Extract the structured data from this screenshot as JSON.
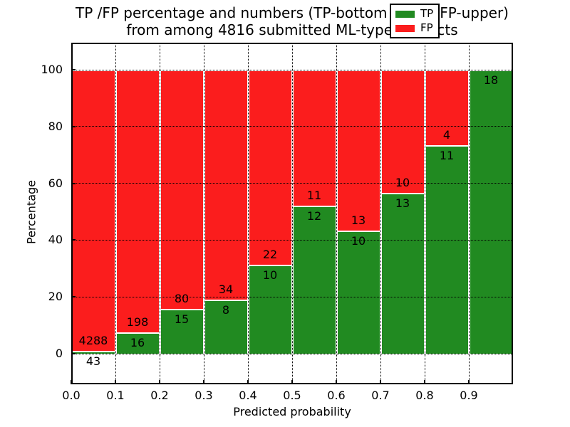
{
  "title": {
    "line1": "TP /FP percentage and numbers (TP-bottom value, FP-upper)",
    "line2": "from among 4816 submitted ML-type contacts"
  },
  "axis": {
    "xlabel": "Predicted probability",
    "ylabel": "Percentage"
  },
  "legend": {
    "items": [
      {
        "label": "TP",
        "color": "#218a21"
      },
      {
        "label": "FP",
        "color": "#fb1d1d"
      }
    ]
  },
  "chart_data": {
    "type": "bar",
    "stacked": true,
    "normalized_to_percent": true,
    "title": "TP /FP percentage and numbers (TP-bottom value, FP-upper) from among 4816 submitted ML-type contacts",
    "xlabel": "Predicted probability",
    "ylabel": "Percentage",
    "total_contacts": 4816,
    "bin_width": 0.1,
    "categories": [
      "0.0-0.1",
      "0.1-0.2",
      "0.2-0.3",
      "0.3-0.4",
      "0.4-0.5",
      "0.5-0.6",
      "0.6-0.7",
      "0.7-0.8",
      "0.8-0.9",
      "0.9-1.0"
    ],
    "series": [
      {
        "name": "TP",
        "color": "#218a21",
        "counts": [
          43,
          16,
          15,
          8,
          10,
          12,
          10,
          13,
          11,
          18
        ]
      },
      {
        "name": "FP",
        "color": "#fb1d1d",
        "counts": [
          4288,
          198,
          80,
          34,
          22,
          11,
          13,
          10,
          4,
          0
        ]
      }
    ],
    "tp_percent": [
      0.99,
      7.48,
      15.79,
      19.05,
      31.25,
      52.17,
      43.48,
      56.52,
      73.33,
      100.0
    ],
    "x_ticks": [
      "0.0",
      "0.1",
      "0.2",
      "0.3",
      "0.4",
      "0.5",
      "0.6",
      "0.7",
      "0.8",
      "0.9"
    ],
    "y_ticks": [
      0,
      20,
      40,
      60,
      80,
      100
    ],
    "xlim": [
      0.0,
      1.0
    ],
    "ylim": [
      -11,
      110
    ],
    "grid": true,
    "legend_position": "upper-right"
  }
}
